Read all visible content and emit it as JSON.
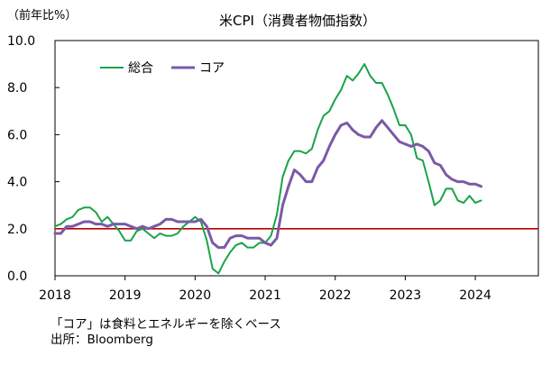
{
  "chart_data": {
    "type": "line",
    "title": "米CPI（消費者物価指数）",
    "ylabel": "（前年比%）",
    "ylim": [
      0,
      10
    ],
    "yticks": [
      "0.0",
      "2.0",
      "4.0",
      "6.0",
      "8.0",
      "10.0"
    ],
    "xlim": [
      2018,
      2024.9
    ],
    "xticks": [
      "2018",
      "2019",
      "2020",
      "2021",
      "2022",
      "2023",
      "2024"
    ],
    "grid": false,
    "legend_position": "top-left",
    "reference_line": {
      "y": 2.0,
      "color": "#c00000"
    },
    "series": [
      {
        "name": "総合",
        "color": "#1aa34a",
        "x": [
          2018.0,
          2018.083,
          2018.167,
          2018.25,
          2018.333,
          2018.417,
          2018.5,
          2018.583,
          2018.667,
          2018.75,
          2018.833,
          2018.917,
          2019.0,
          2019.083,
          2019.167,
          2019.25,
          2019.333,
          2019.417,
          2019.5,
          2019.583,
          2019.667,
          2019.75,
          2019.833,
          2019.917,
          2020.0,
          2020.083,
          2020.167,
          2020.25,
          2020.333,
          2020.417,
          2020.5,
          2020.583,
          2020.667,
          2020.75,
          2020.833,
          2020.917,
          2021.0,
          2021.083,
          2021.167,
          2021.25,
          2021.333,
          2021.417,
          2021.5,
          2021.583,
          2021.667,
          2021.75,
          2021.833,
          2021.917,
          2022.0,
          2022.083,
          2022.167,
          2022.25,
          2022.333,
          2022.417,
          2022.5,
          2022.583,
          2022.667,
          2022.75,
          2022.833,
          2022.917,
          2023.0,
          2023.083,
          2023.167,
          2023.25,
          2023.333,
          2023.417,
          2023.5,
          2023.583,
          2023.667,
          2023.75,
          2023.833,
          2023.917,
          2024.0,
          2024.083
        ],
        "values": [
          2.1,
          2.2,
          2.4,
          2.5,
          2.8,
          2.9,
          2.9,
          2.7,
          2.3,
          2.5,
          2.2,
          1.9,
          1.5,
          1.5,
          1.9,
          2.0,
          1.8,
          1.6,
          1.8,
          1.7,
          1.7,
          1.8,
          2.1,
          2.3,
          2.5,
          2.3,
          1.5,
          0.3,
          0.1,
          0.6,
          1.0,
          1.3,
          1.4,
          1.2,
          1.2,
          1.4,
          1.4,
          1.7,
          2.6,
          4.2,
          4.9,
          5.3,
          5.3,
          5.2,
          5.4,
          6.2,
          6.8,
          7.0,
          7.5,
          7.9,
          8.5,
          8.3,
          8.6,
          9.0,
          8.5,
          8.2,
          8.2,
          7.7,
          7.1,
          6.4,
          6.4,
          6.0,
          5.0,
          4.9,
          4.0,
          3.0,
          3.2,
          3.7,
          3.7,
          3.2,
          3.1,
          3.4,
          3.1,
          3.2
        ]
      },
      {
        "name": "コア",
        "color": "#7b5aa6",
        "x": [
          2018.0,
          2018.083,
          2018.167,
          2018.25,
          2018.333,
          2018.417,
          2018.5,
          2018.583,
          2018.667,
          2018.75,
          2018.833,
          2018.917,
          2019.0,
          2019.083,
          2019.167,
          2019.25,
          2019.333,
          2019.417,
          2019.5,
          2019.583,
          2019.667,
          2019.75,
          2019.833,
          2019.917,
          2020.0,
          2020.083,
          2020.167,
          2020.25,
          2020.333,
          2020.417,
          2020.5,
          2020.583,
          2020.667,
          2020.75,
          2020.833,
          2020.917,
          2021.0,
          2021.083,
          2021.167,
          2021.25,
          2021.333,
          2021.417,
          2021.5,
          2021.583,
          2021.667,
          2021.75,
          2021.833,
          2021.917,
          2022.0,
          2022.083,
          2022.167,
          2022.25,
          2022.333,
          2022.417,
          2022.5,
          2022.583,
          2022.667,
          2022.75,
          2022.833,
          2022.917,
          2023.0,
          2023.083,
          2023.167,
          2023.25,
          2023.333,
          2023.417,
          2023.5,
          2023.583,
          2023.667,
          2023.75,
          2023.833,
          2023.917,
          2024.0,
          2024.083
        ],
        "values": [
          1.8,
          1.8,
          2.1,
          2.1,
          2.2,
          2.3,
          2.3,
          2.2,
          2.2,
          2.1,
          2.2,
          2.2,
          2.2,
          2.1,
          2.0,
          2.1,
          2.0,
          2.1,
          2.2,
          2.4,
          2.4,
          2.3,
          2.3,
          2.3,
          2.3,
          2.4,
          2.1,
          1.4,
          1.2,
          1.2,
          1.6,
          1.7,
          1.7,
          1.6,
          1.6,
          1.6,
          1.4,
          1.3,
          1.6,
          3.0,
          3.8,
          4.5,
          4.3,
          4.0,
          4.0,
          4.6,
          4.9,
          5.5,
          6.0,
          6.4,
          6.5,
          6.2,
          6.0,
          5.9,
          5.9,
          6.3,
          6.6,
          6.3,
          6.0,
          5.7,
          5.6,
          5.5,
          5.6,
          5.5,
          5.3,
          4.8,
          4.7,
          4.3,
          4.1,
          4.0,
          4.0,
          3.9,
          3.9,
          3.8
        ]
      }
    ]
  },
  "notes": {
    "line1": "「コア」は食料とエネルギーを除くベース",
    "line2": "出所：Bloomberg"
  }
}
